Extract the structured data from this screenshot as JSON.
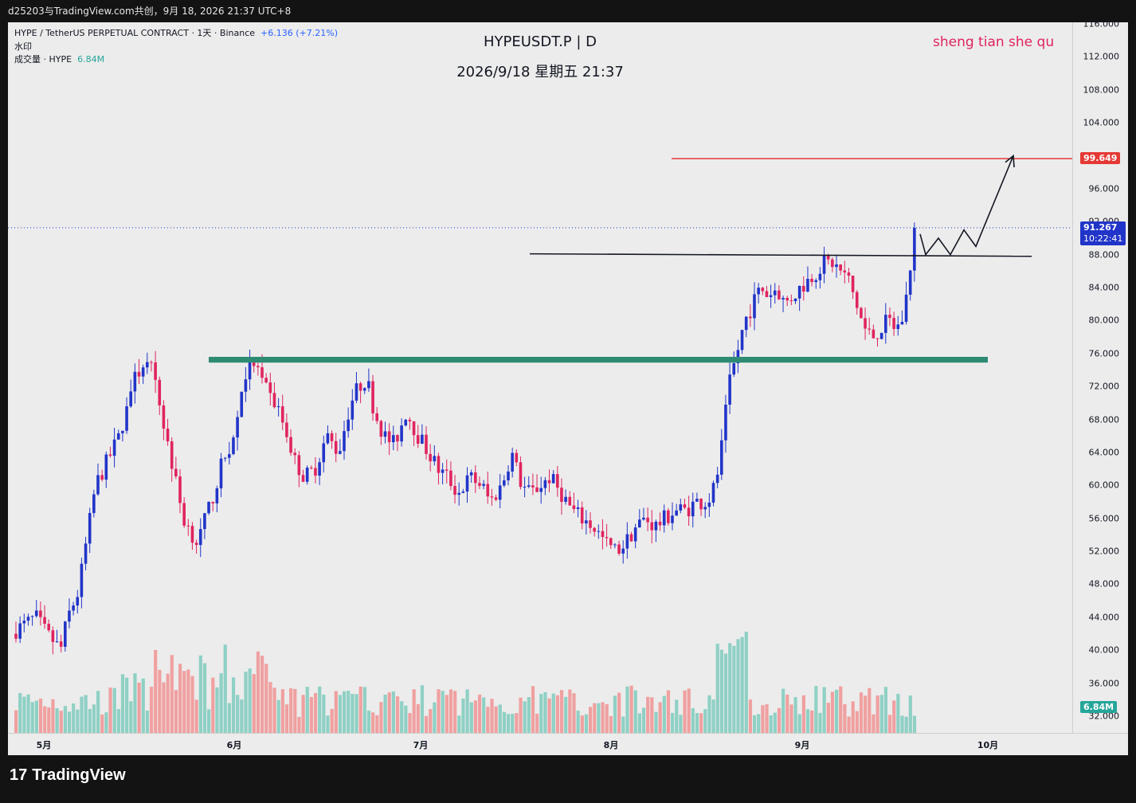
{
  "topbar": {
    "text": "d25203与TradingView.com共创，9月 18, 2026 21:37 UTC+8"
  },
  "legend": {
    "symbol": "HYPE / TetherUS PERPETUAL CONTRACT · 1天 · Binance",
    "change": "+6.136 (+7.21%)",
    "watermark_line": "水印",
    "volume_label": "成交量 · HYPE",
    "volume_value": "6.84M"
  },
  "title": {
    "main": "HYPEUSDT.P | D",
    "sub": "2026/9/18 星期五 21:37"
  },
  "watermark": "sheng tian she qu",
  "brand": {
    "name": "TradingView",
    "logo_text": "17"
  },
  "badges": {
    "target": "99.649",
    "last_price": "91.267",
    "countdown": "10:22:41",
    "volume": "6.84M"
  },
  "colors": {
    "up": "#2134c9",
    "down": "#e0245e",
    "vol_up": "#8fd0c4",
    "vol_down": "#f0a0a0",
    "support_band": "#2e8b73",
    "target_line": "#e53935",
    "resistance_line": "#131722"
  },
  "chart_data": {
    "type": "candlestick",
    "title": "HYPEUSDT.P | D",
    "y_axis": {
      "min": 29,
      "max": 117,
      "ticks": [
        "116.000",
        "112.000",
        "108.000",
        "104.000",
        "100.000",
        "96.000",
        "92.000",
        "88.000",
        "84.000",
        "80.000",
        "76.000",
        "72.000",
        "68.000",
        "64.000",
        "60.000",
        "56.000",
        "52.000",
        "48.000",
        "44.000",
        "40.000",
        "36.000",
        "32.000"
      ]
    },
    "x_axis": {
      "ticks": [
        "5月",
        "6月",
        "7月",
        "8月",
        "9月",
        "10月"
      ]
    },
    "levels": {
      "target": 99.649,
      "resistance": 88.0,
      "support_band": [
        74.9,
        75.6
      ],
      "last": 91.267
    },
    "zigzag_projection": [
      [
        0,
        90.5
      ],
      [
        1,
        88
      ],
      [
        2,
        90
      ],
      [
        3,
        88
      ],
      [
        4,
        91
      ],
      [
        5,
        89
      ],
      [
        6,
        100
      ]
    ],
    "volume": {
      "last": "6.84M"
    }
  }
}
